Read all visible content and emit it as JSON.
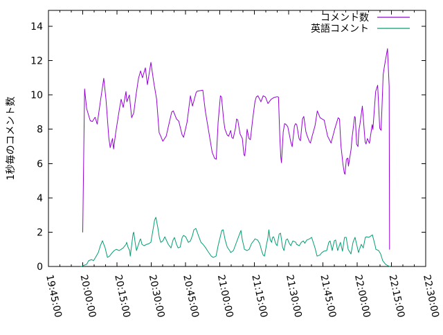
{
  "figure": {
    "background": "#ffffff",
    "border_color": "#000000",
    "text_color": "#000000"
  },
  "chart_data": {
    "type": "line",
    "title": "",
    "xlabel": "",
    "ylabel": "1秒毎のコメント数",
    "grid": false,
    "legend_position": "top-right",
    "x_axis": {
      "tick_labels": [
        "19:45:00",
        "20:00:00",
        "20:15:00",
        "20:30:00",
        "20:45:00",
        "21:00:00",
        "21:15:00",
        "21:30:00",
        "21:45:00",
        "22:00:00",
        "22:15:00",
        "22:30:00"
      ],
      "range_seconds": [
        0,
        9900
      ],
      "major_interval_seconds": 900,
      "minor_interval_seconds": 300,
      "label_rotation_deg": 78
    },
    "y_axis": {
      "ticks": [
        0,
        2,
        4,
        6,
        8,
        10,
        12,
        14
      ],
      "range": [
        0,
        14.93
      ]
    },
    "series": [
      {
        "name": "コメント数",
        "color": "#9400d3",
        "points": [
          [
            900,
            2.0
          ],
          [
            948,
            10.35
          ],
          [
            1002,
            9.2
          ],
          [
            1056,
            8.8
          ],
          [
            1098,
            8.5
          ],
          [
            1152,
            8.45
          ],
          [
            1224,
            8.7
          ],
          [
            1278,
            8.3
          ],
          [
            1368,
            9.7
          ],
          [
            1452,
            10.97
          ],
          [
            1512,
            9.7
          ],
          [
            1584,
            7.5
          ],
          [
            1620,
            6.93
          ],
          [
            1680,
            7.46
          ],
          [
            1710,
            6.85
          ],
          [
            1770,
            7.86
          ],
          [
            1860,
            9.15
          ],
          [
            1908,
            9.75
          ],
          [
            1962,
            9.27
          ],
          [
            2034,
            10.2
          ],
          [
            2058,
            9.6
          ],
          [
            2124,
            10.0
          ],
          [
            2184,
            8.67
          ],
          [
            2238,
            8.95
          ],
          [
            2298,
            10.0
          ],
          [
            2364,
            10.97
          ],
          [
            2418,
            11.4
          ],
          [
            2466,
            11.0
          ],
          [
            2544,
            11.58
          ],
          [
            2598,
            10.6
          ],
          [
            2688,
            11.9
          ],
          [
            2760,
            10.8
          ],
          [
            2838,
            9.76
          ],
          [
            2904,
            7.8
          ],
          [
            2946,
            7.6
          ],
          [
            3000,
            7.3
          ],
          [
            3090,
            7.6
          ],
          [
            3234,
            9.0
          ],
          [
            3276,
            9.07
          ],
          [
            3360,
            8.6
          ],
          [
            3420,
            8.47
          ],
          [
            3504,
            7.7
          ],
          [
            3546,
            7.53
          ],
          [
            3636,
            8.4
          ],
          [
            3726,
            9.95
          ],
          [
            3780,
            9.35
          ],
          [
            3876,
            10.15
          ],
          [
            3906,
            10.22
          ],
          [
            4050,
            10.28
          ],
          [
            4116,
            9.07
          ],
          [
            4176,
            8.27
          ],
          [
            4236,
            7.46
          ],
          [
            4296,
            6.66
          ],
          [
            4362,
            6.3
          ],
          [
            4404,
            6.25
          ],
          [
            4452,
            8.4
          ],
          [
            4512,
            9.95
          ],
          [
            4542,
            9.88
          ],
          [
            4602,
            8.47
          ],
          [
            4632,
            8.0
          ],
          [
            4692,
            7.66
          ],
          [
            4728,
            7.6
          ],
          [
            4782,
            7.93
          ],
          [
            4812,
            7.53
          ],
          [
            4848,
            7.46
          ],
          [
            4908,
            8.07
          ],
          [
            4938,
            8.6
          ],
          [
            4968,
            8.54
          ],
          [
            5028,
            7.73
          ],
          [
            5088,
            7.46
          ],
          [
            5130,
            6.52
          ],
          [
            5154,
            6.45
          ],
          [
            5214,
            8.0
          ],
          [
            5262,
            7.46
          ],
          [
            5298,
            7.39
          ],
          [
            5364,
            8.67
          ],
          [
            5418,
            9.6
          ],
          [
            5454,
            9.88
          ],
          [
            5496,
            9.95
          ],
          [
            5544,
            9.75
          ],
          [
            5574,
            9.6
          ],
          [
            5634,
            9.95
          ],
          [
            5694,
            9.88
          ],
          [
            5760,
            9.5
          ],
          [
            5844,
            9.75
          ],
          [
            5916,
            9.85
          ],
          [
            6000,
            9.9
          ],
          [
            6036,
            9.88
          ],
          [
            6072,
            7.5
          ],
          [
            6096,
            6.4
          ],
          [
            6114,
            6.05
          ],
          [
            6162,
            7.86
          ],
          [
            6198,
            8.33
          ],
          [
            6240,
            8.27
          ],
          [
            6282,
            8.14
          ],
          [
            6360,
            7.26
          ],
          [
            6396,
            6.98
          ],
          [
            6456,
            8.2
          ],
          [
            6486,
            8.33
          ],
          [
            6516,
            8.27
          ],
          [
            6576,
            7.46
          ],
          [
            6612,
            7.33
          ],
          [
            6666,
            8.6
          ],
          [
            6702,
            8.75
          ],
          [
            6756,
            7.86
          ],
          [
            6792,
            7.6
          ],
          [
            6852,
            7.26
          ],
          [
            6876,
            7.2
          ],
          [
            6912,
            7.53
          ],
          [
            6996,
            8.2
          ],
          [
            7056,
            9.07
          ],
          [
            7128,
            8.67
          ],
          [
            7182,
            8.6
          ],
          [
            7236,
            8.54
          ],
          [
            7326,
            7.6
          ],
          [
            7416,
            7.2
          ],
          [
            7512,
            8.0
          ],
          [
            7602,
            8.67
          ],
          [
            7638,
            8.6
          ],
          [
            7674,
            7.06
          ],
          [
            7728,
            5.98
          ],
          [
            7764,
            5.45
          ],
          [
            7782,
            5.38
          ],
          [
            7818,
            6.25
          ],
          [
            7854,
            6.32
          ],
          [
            7872,
            5.85
          ],
          [
            7944,
            6.86
          ],
          [
            7962,
            7.39
          ],
          [
            8034,
            8.74
          ],
          [
            8052,
            8.67
          ],
          [
            8088,
            7.13
          ],
          [
            8124,
            6.99
          ],
          [
            8142,
            7.86
          ],
          [
            8172,
            8.27
          ],
          [
            8238,
            9.35
          ],
          [
            8310,
            7.26
          ],
          [
            8334,
            7.14
          ],
          [
            8370,
            7.46
          ],
          [
            8424,
            7.18
          ],
          [
            8496,
            8.27
          ],
          [
            8514,
            7.99
          ],
          [
            8586,
            10.2
          ],
          [
            8640,
            10.57
          ],
          [
            8694,
            8.06
          ],
          [
            8730,
            7.94
          ],
          [
            8784,
            11.2
          ],
          [
            8820,
            11.7
          ],
          [
            8898,
            12.7
          ],
          [
            8940,
            10.5
          ],
          [
            8952,
            1.0
          ]
        ]
      },
      {
        "name": "英語コメント",
        "color": "#009e73",
        "points": [
          [
            858,
            0.0
          ],
          [
            1002,
            0.13
          ],
          [
            1056,
            0.34
          ],
          [
            1128,
            0.4
          ],
          [
            1182,
            0.34
          ],
          [
            1236,
            0.53
          ],
          [
            1308,
            0.81
          ],
          [
            1362,
            1.21
          ],
          [
            1416,
            1.5
          ],
          [
            1488,
            1.08
          ],
          [
            1548,
            0.53
          ],
          [
            1602,
            0.6
          ],
          [
            1674,
            0.81
          ],
          [
            1728,
            0.93
          ],
          [
            1782,
            1.0
          ],
          [
            1854,
            0.93
          ],
          [
            1908,
            1.0
          ],
          [
            1962,
            1.08
          ],
          [
            2034,
            1.29
          ],
          [
            2052,
            1.41
          ],
          [
            2088,
            1.13
          ],
          [
            2130,
            0.93
          ],
          [
            2148,
            0.6
          ],
          [
            2220,
            1.89
          ],
          [
            2238,
            2.0
          ],
          [
            2274,
            1.41
          ],
          [
            2310,
            0.93
          ],
          [
            2400,
            1.54
          ],
          [
            2418,
            1.61
          ],
          [
            2454,
            1.29
          ],
          [
            2508,
            1.21
          ],
          [
            2580,
            1.29
          ],
          [
            2634,
            1.33
          ],
          [
            2688,
            1.41
          ],
          [
            2760,
            2.34
          ],
          [
            2784,
            2.7
          ],
          [
            2820,
            2.87
          ],
          [
            2874,
            2.22
          ],
          [
            2910,
            1.69
          ],
          [
            2946,
            1.41
          ],
          [
            3000,
            1.49
          ],
          [
            3054,
            1.73
          ],
          [
            3144,
            1.29
          ],
          [
            3216,
            1.08
          ],
          [
            3270,
            1.54
          ],
          [
            3306,
            1.69
          ],
          [
            3360,
            1.29
          ],
          [
            3402,
            1.08
          ],
          [
            3456,
            1.13
          ],
          [
            3510,
            1.69
          ],
          [
            3546,
            1.81
          ],
          [
            3600,
            1.73
          ],
          [
            3672,
            1.41
          ],
          [
            3726,
            1.49
          ],
          [
            3780,
            1.81
          ],
          [
            3816,
            2.14
          ],
          [
            3870,
            2.22
          ],
          [
            3948,
            1.73
          ],
          [
            4002,
            1.41
          ],
          [
            4056,
            1.29
          ],
          [
            4128,
            1.08
          ],
          [
            4182,
            0.89
          ],
          [
            4272,
            0.6
          ],
          [
            4326,
            0.53
          ],
          [
            4398,
            0.6
          ],
          [
            4452,
            1.21
          ],
          [
            4548,
            2.1
          ],
          [
            4584,
            2.14
          ],
          [
            4638,
            1.54
          ],
          [
            4692,
            1.13
          ],
          [
            4764,
            0.89
          ],
          [
            4782,
            0.81
          ],
          [
            4854,
            0.93
          ],
          [
            5034,
            2.0
          ],
          [
            5052,
            2.1
          ],
          [
            5088,
            1.54
          ],
          [
            5124,
            1.21
          ],
          [
            5142,
            1.0
          ],
          [
            5214,
            0.93
          ],
          [
            5268,
            1.0
          ],
          [
            5328,
            1.33
          ],
          [
            5400,
            1.54
          ],
          [
            5418,
            1.61
          ],
          [
            5490,
            1.54
          ],
          [
            5544,
            1.33
          ],
          [
            5598,
            0.89
          ],
          [
            5634,
            0.67
          ],
          [
            5670,
            0.6
          ],
          [
            5724,
            1.29
          ],
          [
            5760,
            1.69
          ],
          [
            5784,
            2.14
          ],
          [
            5820,
            1.54
          ],
          [
            5856,
            1.41
          ],
          [
            5880,
            1.69
          ],
          [
            5910,
            1.73
          ],
          [
            5964,
            1.33
          ],
          [
            6000,
            1.21
          ],
          [
            6054,
            1.89
          ],
          [
            6090,
            1.94
          ],
          [
            6144,
            1.13
          ],
          [
            6180,
            0.93
          ],
          [
            6234,
            1.54
          ],
          [
            6270,
            1.61
          ],
          [
            6324,
            1.33
          ],
          [
            6360,
            1.21
          ],
          [
            6414,
            1.49
          ],
          [
            6492,
            1.41
          ],
          [
            6510,
            1.29
          ],
          [
            6582,
            1.21
          ],
          [
            6636,
            1.41
          ],
          [
            6690,
            1.49
          ],
          [
            6726,
            1.35
          ],
          [
            6780,
            1.54
          ],
          [
            6852,
            1.61
          ],
          [
            6906,
            1.7
          ],
          [
            6996,
            1.08
          ],
          [
            7050,
            0.6
          ],
          [
            7122,
            0.67
          ],
          [
            7176,
            0.81
          ],
          [
            7230,
            0.89
          ],
          [
            7302,
            0.93
          ],
          [
            7356,
            1.41
          ],
          [
            7392,
            1.49
          ],
          [
            7446,
            0.93
          ],
          [
            7500,
            1.49
          ],
          [
            7536,
            1.54
          ],
          [
            7590,
            0.93
          ],
          [
            7662,
            1.41
          ],
          [
            7716,
            0.89
          ],
          [
            7770,
            1.69
          ],
          [
            7812,
            1.7
          ],
          [
            7866,
            1.0
          ],
          [
            7938,
            0.73
          ],
          [
            7992,
            1.41
          ],
          [
            8046,
            1.7
          ],
          [
            8118,
            1.0
          ],
          [
            8136,
            0.81
          ],
          [
            8208,
            1.29
          ],
          [
            8262,
            1.08
          ],
          [
            8316,
            1.7
          ],
          [
            8352,
            1.73
          ],
          [
            8406,
            1.7
          ],
          [
            8484,
            1.81
          ],
          [
            8502,
            1.85
          ],
          [
            8574,
            1.21
          ],
          [
            8592,
            1.0
          ],
          [
            8664,
            0.93
          ],
          [
            8718,
            0.73
          ],
          [
            8772,
            0.34
          ],
          [
            8844,
            0.13
          ],
          [
            8898,
            0.06
          ],
          [
            8952,
            0.0
          ]
        ]
      }
    ]
  }
}
